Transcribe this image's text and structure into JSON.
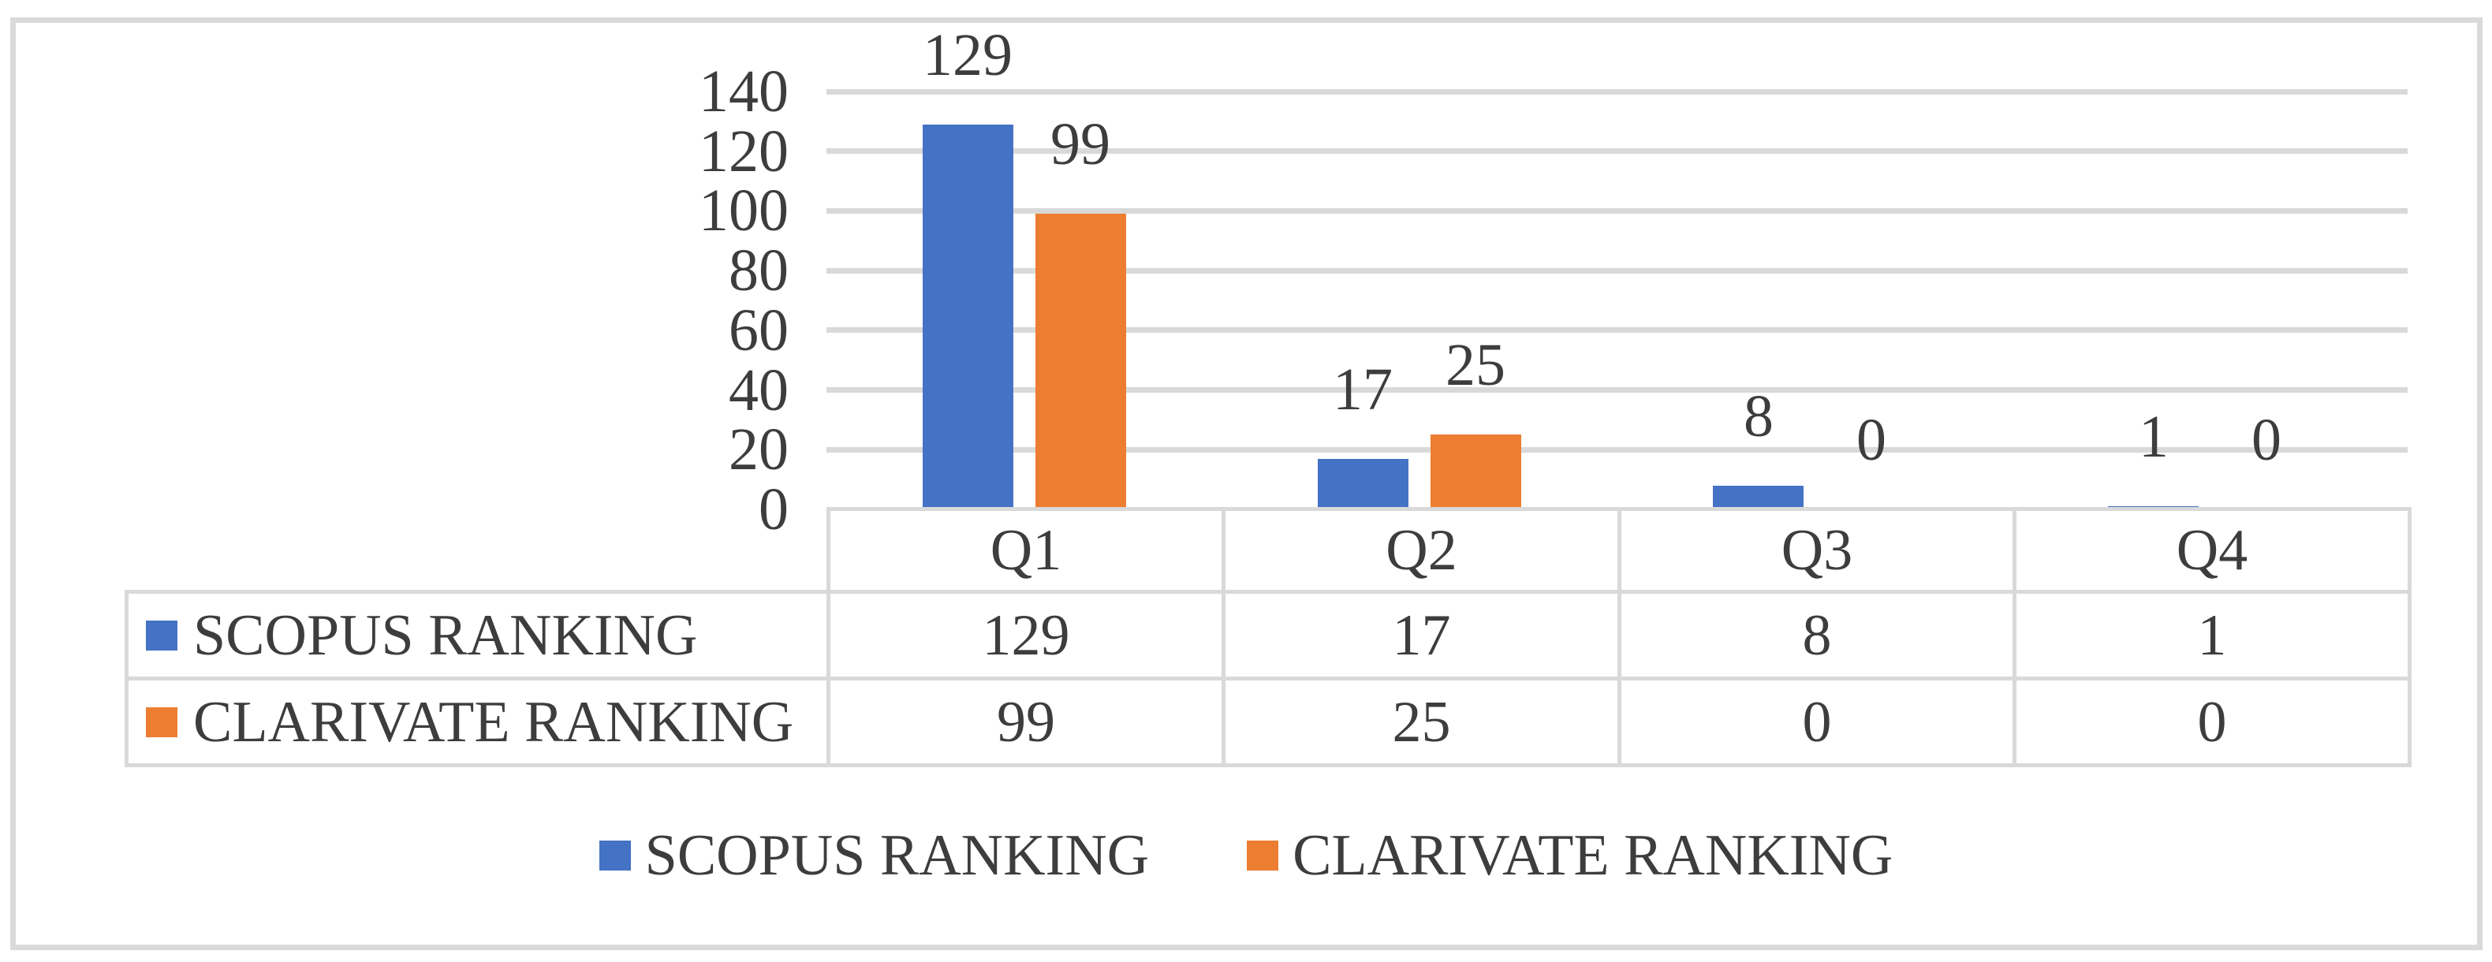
{
  "chart_data": {
    "type": "bar",
    "categories": [
      "Q1",
      "Q2",
      "Q3",
      "Q4"
    ],
    "series": [
      {
        "name": "SCOPUS RANKING",
        "color": "#4472C4",
        "values": [
          129,
          17,
          8,
          1
        ]
      },
      {
        "name": "CLARIVATE RANKING",
        "color": "#ED7D31",
        "values": [
          99,
          25,
          0,
          0
        ]
      }
    ],
    "yticks": [
      0,
      20,
      40,
      60,
      80,
      100,
      120,
      140
    ],
    "ylim": [
      0,
      140
    ],
    "grid": true,
    "gridline_color": "#D9D9D9",
    "frame_color": "#DADADA",
    "text_color": "#3d3d3d",
    "data_labels": true,
    "data_table": true,
    "legend_position": "bottom"
  }
}
